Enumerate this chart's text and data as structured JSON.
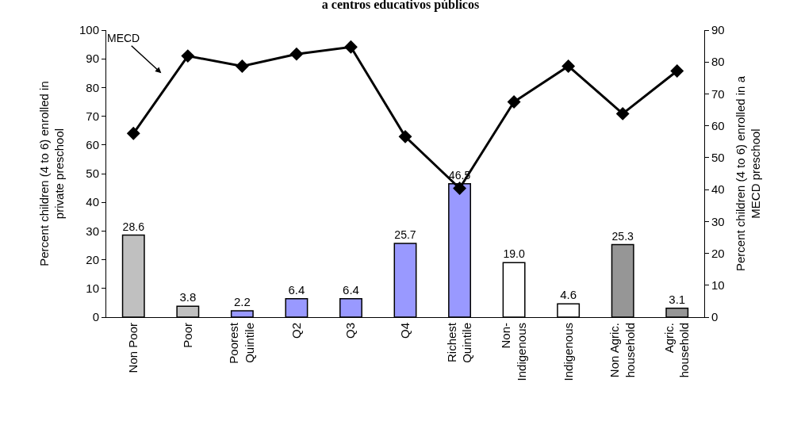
{
  "chart_data": {
    "type": "bar",
    "title": "a centros educativos públicos",
    "ylabel": "Percent children (4 to 6) enrolled in\nprivate preschool",
    "y2label": "Percent children (4 to 6) enrolled in a\nMECD preschool",
    "categories": [
      "Non Poor",
      "Poor",
      "Poorest\nQuintile",
      "Q2",
      "Q3",
      "Q4",
      "Richest\nQuintile",
      "Non-\nIndigenous",
      "Indigenous",
      "Non Agric.\nhousehold",
      "Agric.\nhousehold"
    ],
    "series": [
      {
        "values": [
          28.6,
          3.8,
          2.2,
          6.4,
          6.4,
          25.7,
          46.5,
          19.0,
          4.6,
          25.3,
          3.1
        ],
        "colors": [
          "#c0c0c0",
          "#c0c0c0",
          "#9999ff",
          "#9999ff",
          "#9999ff",
          "#9999ff",
          "#9999ff",
          "#ffffff",
          "#ffffff",
          "#969696",
          "#969696"
        ],
        "value_labels": [
          "28.6",
          "3.8",
          "2.2",
          "6.4",
          "6.4",
          "25.7",
          "46.5",
          "19.0",
          "4.6",
          "25.3",
          "3.1"
        ]
      },
      {
        "type": "line",
        "axis": "y2",
        "color": "#000000",
        "marker": "diamond",
        "line_style": "solid",
        "values": [
          57.6,
          81.9,
          78.7,
          82.5,
          84.7,
          56.6,
          40.4,
          67.5,
          78.7,
          63.8,
          77.2
        ]
      }
    ],
    "ylim": [
      0,
      100
    ],
    "yticks": [
      0,
      10,
      20,
      30,
      40,
      50,
      60,
      70,
      80,
      90,
      100
    ],
    "y2lim": [
      0,
      90
    ],
    "y2ticks": [
      0,
      10,
      20,
      30,
      40,
      50,
      60,
      70,
      80,
      90
    ],
    "annotations": [
      "MECD"
    ],
    "legend": false
  }
}
